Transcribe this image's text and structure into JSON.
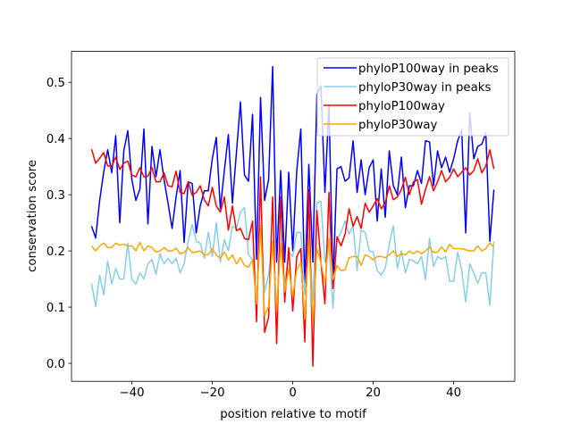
{
  "chart_data": {
    "type": "line",
    "title": "",
    "xlabel": "position relative to motif",
    "ylabel": "conservation score",
    "xlim": [
      -55,
      55.2
    ],
    "ylim": [
      -0.032,
      0.555
    ],
    "xticks": [
      -40,
      -20,
      0,
      20,
      40
    ],
    "xtick_labels": [
      "−40",
      "−20",
      "0",
      "20",
      "40"
    ],
    "yticks": [
      0.0,
      0.1,
      0.2,
      0.3,
      0.4,
      0.5
    ],
    "ytick_labels": [
      "0.0",
      "0.1",
      "0.2",
      "0.3",
      "0.4",
      "0.5"
    ],
    "grid": false,
    "legend_position": "top-right",
    "x_start": -50,
    "x_end": 50,
    "series": [
      {
        "name": "phyloP100way in peaks",
        "color": "#0000ff",
        "values": [
          0.244,
          0.223,
          0.29,
          0.34,
          0.38,
          0.339,
          0.405,
          0.25,
          0.378,
          0.414,
          0.327,
          0.29,
          0.31,
          0.417,
          0.248,
          0.386,
          0.332,
          0.38,
          0.327,
          0.285,
          0.24,
          0.296,
          0.343,
          0.215,
          0.323,
          0.32,
          0.232,
          0.28,
          0.307,
          0.307,
          0.364,
          0.402,
          0.275,
          0.343,
          0.407,
          0.285,
          0.375,
          0.465,
          0.335,
          0.324,
          0.443,
          0.185,
          0.473,
          0.29,
          0.327,
          0.528,
          0.18,
          0.343,
          0.18,
          0.34,
          0.2,
          0.343,
          0.417,
          0.142,
          0.354,
          0.18,
          0.478,
          0.494,
          0.304,
          0.46,
          0.14,
          0.346,
          0.35,
          0.324,
          0.33,
          0.396,
          0.304,
          0.362,
          0.3,
          0.348,
          0.362,
          0.253,
          0.346,
          0.26,
          0.378,
          0.316,
          0.3,
          0.367,
          0.277,
          0.316,
          0.316,
          0.343,
          0.32,
          0.396,
          0.394,
          0.316,
          0.378,
          0.348,
          0.367,
          0.34,
          0.364,
          0.396,
          0.415,
          0.232,
          0.446,
          0.364,
          0.386,
          0.39,
          0.41,
          0.217,
          0.309
        ]
      },
      {
        "name": "phyloP30way in peaks",
        "color": "#87ceeb",
        "values": [
          0.142,
          0.101,
          0.157,
          0.122,
          0.182,
          0.141,
          0.169,
          0.15,
          0.15,
          0.214,
          0.149,
          0.141,
          0.161,
          0.15,
          0.177,
          0.185,
          0.158,
          0.195,
          0.177,
          0.187,
          0.177,
          0.187,
          0.161,
          0.177,
          0.217,
          0.247,
          0.217,
          0.214,
          0.187,
          0.233,
          0.19,
          0.25,
          0.18,
          0.22,
          0.2,
          0.244,
          0.24,
          0.269,
          0.277,
          0.193,
          0.185,
          0.111,
          0.245,
          0.127,
          0.158,
          0.217,
          0.098,
          0.212,
          0.142,
          0.198,
          0.19,
          0.233,
          0.233,
          0.122,
          0.228,
          0.111,
          0.285,
          0.288,
          0.18,
          0.212,
          0.098,
          0.22,
          0.233,
          0.253,
          0.23,
          0.245,
          0.165,
          0.237,
          0.233,
          0.2,
          0.198,
          0.165,
          0.157,
          0.169,
          0.212,
          0.245,
          0.169,
          0.2,
          0.161,
          0.185,
          0.182,
          0.177,
          0.19,
          0.149,
          0.222,
          0.172,
          0.19,
          0.185,
          0.19,
          0.146,
          0.146,
          0.198,
          0.166,
          0.109,
          0.177,
          0.161,
          0.142,
          0.161,
          0.161,
          0.103,
          0.217
        ]
      },
      {
        "name": "phyloP100way",
        "color": "#ff0000",
        "values": [
          0.381,
          0.356,
          0.365,
          0.375,
          0.351,
          0.351,
          0.367,
          0.345,
          0.356,
          0.36,
          0.335,
          0.332,
          0.348,
          0.332,
          0.333,
          0.348,
          0.323,
          0.323,
          0.339,
          0.316,
          0.314,
          0.342,
          0.304,
          0.302,
          0.323,
          0.299,
          0.304,
          0.316,
          0.291,
          0.28,
          0.313,
          0.28,
          0.269,
          0.296,
          0.237,
          0.28,
          0.236,
          0.24,
          0.222,
          0.22,
          0.253,
          0.074,
          0.332,
          0.055,
          0.082,
          0.296,
          0.035,
          0.296,
          0.109,
          0.206,
          0.093,
          0.19,
          0.204,
          0.038,
          0.309,
          -0.005,
          0.272,
          0.18,
          0.106,
          0.304,
          0.133,
          0.225,
          0.209,
          0.23,
          0.275,
          0.244,
          0.261,
          0.24,
          0.285,
          0.269,
          0.28,
          0.293,
          0.275,
          0.285,
          0.316,
          0.291,
          0.296,
          0.309,
          0.331,
          0.3,
          0.323,
          0.327,
          0.283,
          0.309,
          0.332,
          0.307,
          0.323,
          0.343,
          0.323,
          0.331,
          0.346,
          0.332,
          0.34,
          0.348,
          0.335,
          0.343,
          0.364,
          0.339,
          0.351,
          0.38,
          0.346
        ]
      },
      {
        "name": "phyloP30way",
        "color": "#ffa500",
        "values": [
          0.209,
          0.2,
          0.209,
          0.214,
          0.206,
          0.206,
          0.214,
          0.21,
          0.212,
          0.209,
          0.209,
          0.2,
          0.215,
          0.2,
          0.209,
          0.206,
          0.198,
          0.2,
          0.206,
          0.2,
          0.2,
          0.205,
          0.195,
          0.197,
          0.206,
          0.197,
          0.198,
          0.2,
          0.193,
          0.193,
          0.204,
          0.193,
          0.187,
          0.198,
          0.184,
          0.193,
          0.177,
          0.188,
          0.174,
          0.171,
          0.184,
          0.106,
          0.245,
          0.085,
          0.101,
          0.217,
          0.093,
          0.212,
          0.127,
          0.169,
          0.119,
          0.166,
          0.18,
          0.079,
          0.22,
          0.07,
          0.204,
          0.18,
          0.142,
          0.222,
          0.149,
          0.174,
          0.165,
          0.166,
          0.188,
          0.19,
          0.19,
          0.174,
          0.193,
          0.19,
          0.184,
          0.19,
          0.19,
          0.188,
          0.193,
          0.2,
          0.19,
          0.195,
          0.193,
          0.2,
          0.195,
          0.2,
          0.195,
          0.2,
          0.207,
          0.197,
          0.198,
          0.207,
          0.198,
          0.212,
          0.204,
          0.204,
          0.204,
          0.202,
          0.2,
          0.2,
          0.209,
          0.2,
          0.204,
          0.214,
          0.207
        ]
      }
    ]
  }
}
